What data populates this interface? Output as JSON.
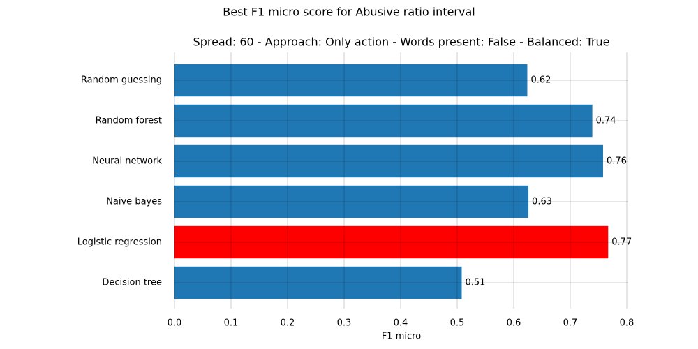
{
  "chart_data": {
    "type": "barh",
    "title": "Best F1 micro score for Abusive ratio interval",
    "subtitle": "Spread: 60 - Approach: Only action - Words present: False - Balanced: True",
    "x_label": "F1 micro",
    "categories": [
      "Random guessing",
      "Random forest",
      "Neural network",
      "Naive bayes",
      "Logistic regression",
      "Decision tree"
    ],
    "values": [
      0.624,
      0.739,
      0.758,
      0.626,
      0.767,
      0.508
    ],
    "value_labels": [
      "0.62",
      "0.74",
      "0.76",
      "0.63",
      "0.77",
      "0.51"
    ],
    "colors": [
      "#1f77b4",
      "#1f77b4",
      "#1f77b4",
      "#1f77b4",
      "#ff0000",
      "#1f77b4"
    ],
    "xlim": [
      0,
      0.8
    ],
    "xticks": [
      {
        "value": 0,
        "label": "0.0"
      },
      0.1,
      0.2,
      0.3,
      0.4,
      0.5,
      0.6,
      0.7,
      0.8
    ],
    "grid": true
  }
}
